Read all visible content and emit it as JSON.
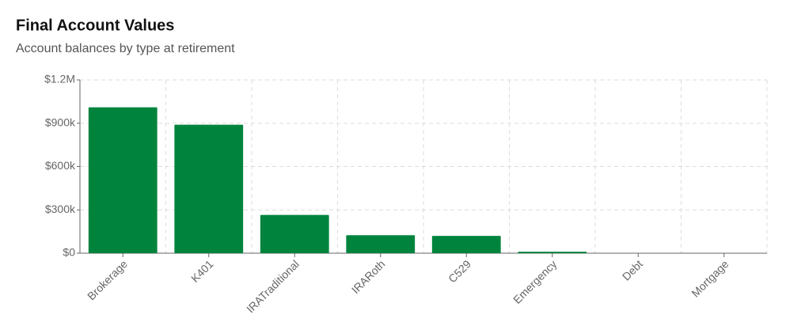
{
  "chart_data": {
    "type": "bar",
    "title": "Final Account Values",
    "subtitle": "Account balances by type at retirement",
    "categories": [
      "Brokerage",
      "K401",
      "IRATraditional",
      "IRARoth",
      "C529",
      "Emergency",
      "Debt",
      "Mortgage"
    ],
    "values": [
      1010000,
      890000,
      265000,
      125000,
      120000,
      10000,
      0,
      0
    ],
    "color": "#00843d",
    "ylim": [
      0,
      1200000
    ],
    "yticks": [
      {
        "value": 0,
        "label": "$0"
      },
      {
        "value": 300000,
        "label": "$300k"
      },
      {
        "value": 600000,
        "label": "$600k"
      },
      {
        "value": 900000,
        "label": "$900k"
      },
      {
        "value": 1200000,
        "label": "$1.2M"
      }
    ],
    "grid": true
  }
}
